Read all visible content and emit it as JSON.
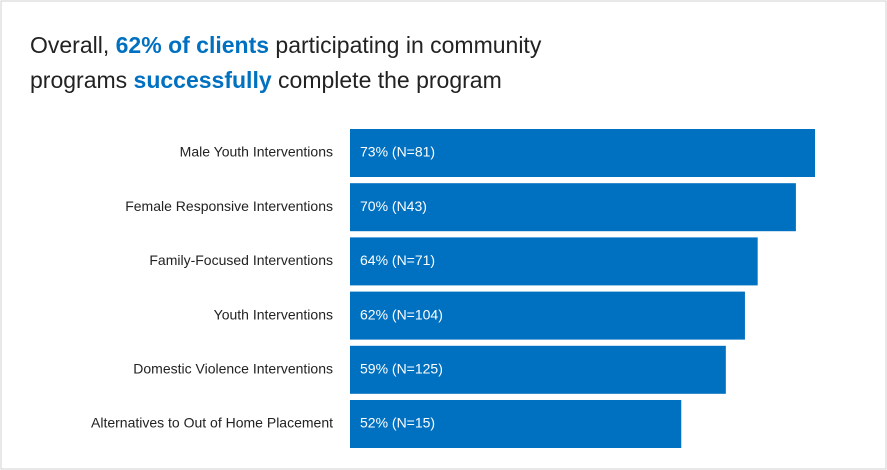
{
  "chart_data": {
    "type": "bar",
    "orientation": "horizontal",
    "title_lines": [
      [
        "Overall, ",
        "62% of clients",
        " participating in community"
      ],
      [
        "programs ",
        "successfully",
        " complete the program"
      ]
    ],
    "categories": [
      "Male Youth Interventions",
      "Female Responsive Interventions",
      "Family-Focused Interventions",
      "Youth Interventions",
      "Domestic Violence Interventions",
      "Alternatives to Out of Home Placement"
    ],
    "values": [
      73,
      70,
      64,
      62,
      59,
      52
    ],
    "value_labels": [
      "73% (N=81)",
      "70% (N43)",
      "64% (N=71)",
      "62% (N=104)",
      "59% (N=125)",
      "52% (N=15)"
    ],
    "color": "#0070c0"
  }
}
